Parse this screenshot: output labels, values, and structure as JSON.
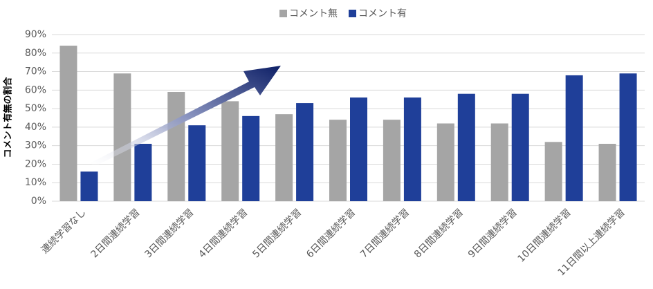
{
  "chart_data": {
    "type": "bar",
    "y_label": "コメント有無の割合",
    "categories": [
      "連続学習なし",
      "2日間連続学習",
      "3日間連続学習",
      "4日間連続学習",
      "5日間連続学習",
      "6日間連続学習",
      "7日間連続学習",
      "8日間連続学習",
      "9日間連続学習",
      "10日間連続学習",
      "11日間以上連続学習"
    ],
    "series": [
      {
        "name": "コメント無",
        "color": "#a5a5a5",
        "values": [
          84,
          69,
          59,
          54,
          47,
          44,
          44,
          42,
          42,
          32,
          31
        ]
      },
      {
        "name": "コメント有",
        "color": "#1f3f99",
        "values": [
          16,
          31,
          41,
          46,
          53,
          56,
          56,
          58,
          58,
          68,
          69
        ]
      }
    ],
    "ylim": [
      0,
      90
    ],
    "yticks": [
      {
        "value": 0,
        "label": "0%"
      },
      {
        "value": 10,
        "label": "10%"
      },
      {
        "value": 20,
        "label": "20%"
      },
      {
        "value": 30,
        "label": "30%"
      },
      {
        "value": 40,
        "label": "40%"
      },
      {
        "value": 50,
        "label": "50%"
      },
      {
        "value": 60,
        "label": "60%"
      },
      {
        "value": 70,
        "label": "70%"
      },
      {
        "value": 80,
        "label": "80%"
      },
      {
        "value": 90,
        "label": "90%"
      }
    ],
    "grid": true,
    "legend": "top"
  }
}
